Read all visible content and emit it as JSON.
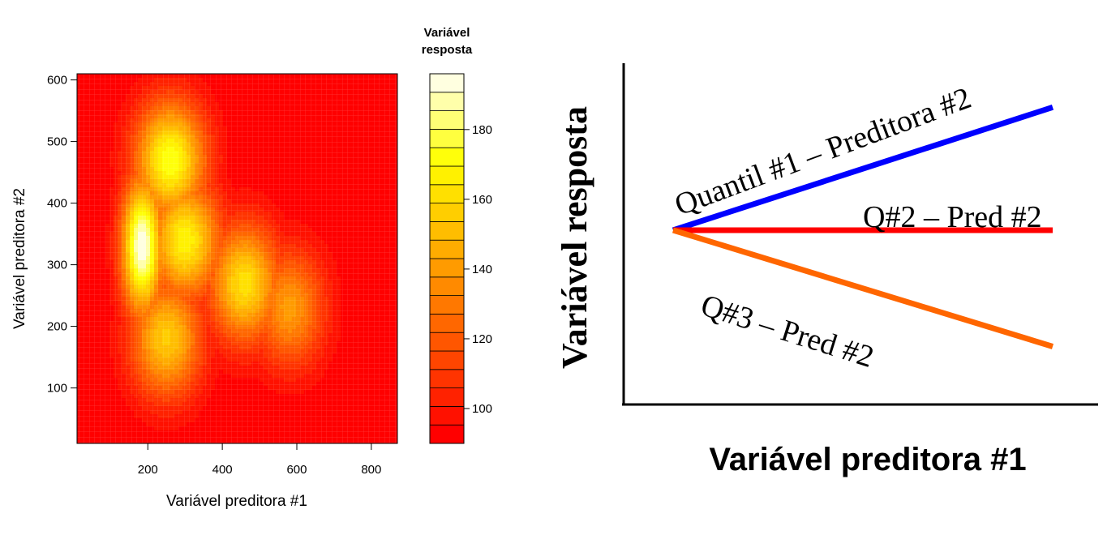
{
  "chart_data": [
    {
      "type": "heatmap",
      "xlabel": "Variável preditora #1",
      "ylabel": "Variável preditora #2",
      "xlim": [
        10,
        870
      ],
      "ylim": [
        10,
        610
      ],
      "x_ticks": [
        200,
        400,
        600,
        800
      ],
      "y_ticks": [
        100,
        200,
        300,
        400,
        500,
        600
      ],
      "legend": {
        "title_lines": [
          "Variável",
          "resposta"
        ],
        "range": [
          90,
          196
        ],
        "ticks": [
          100,
          120,
          140,
          160,
          180
        ],
        "levels": 20,
        "placement": "right",
        "color_low": "#ff0000",
        "color_high": "#ffffe0"
      },
      "surface_peaks": [
        {
          "x": 185,
          "y": 330,
          "z": 196
        },
        {
          "x": 260,
          "y": 470,
          "z": 174
        },
        {
          "x": 300,
          "y": 340,
          "z": 168
        },
        {
          "x": 460,
          "y": 270,
          "z": 162
        },
        {
          "x": 250,
          "y": 180,
          "z": 155
        },
        {
          "x": 580,
          "y": 230,
          "z": 140
        }
      ],
      "grid": true
    },
    {
      "type": "line",
      "xlabel": "Variável preditora #1",
      "ylabel": "Variável resposta",
      "series": [
        {
          "name": "Quantil #1 – Preditora #2",
          "x": [
            0,
            1
          ],
          "y": [
            0.5,
            0.87
          ],
          "color": "#0000ff"
        },
        {
          "name": "Q#2 – Pred #2",
          "x": [
            0,
            1
          ],
          "y": [
            0.5,
            0.5
          ],
          "color": "#ff0000"
        },
        {
          "name": "Q#3 – Pred #2",
          "x": [
            0,
            1
          ],
          "y": [
            0.5,
            0.15
          ],
          "color": "#ff6600"
        }
      ],
      "grid": false
    }
  ]
}
